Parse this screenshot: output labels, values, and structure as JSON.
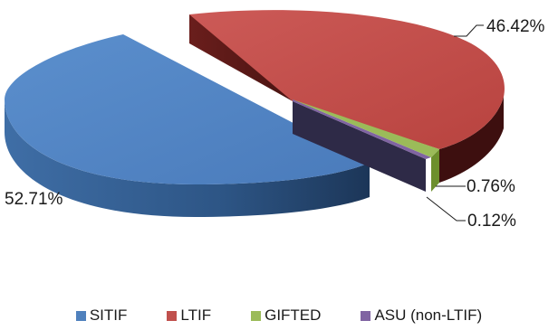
{
  "chart_data": {
    "type": "pie",
    "categories": [
      "SITIF",
      "LTIF",
      "GIFTED",
      "ASU (non-LTIF)"
    ],
    "values": [
      52.71,
      46.42,
      0.76,
      0.12
    ],
    "labels": [
      "52.71%",
      "46.42%",
      "0.76%",
      "0.12%"
    ],
    "colors": [
      "#4f81bd",
      "#c0504d",
      "#9bbb59",
      "#8064a2"
    ],
    "legend_position": "bottom",
    "style": "3d-exploded"
  }
}
